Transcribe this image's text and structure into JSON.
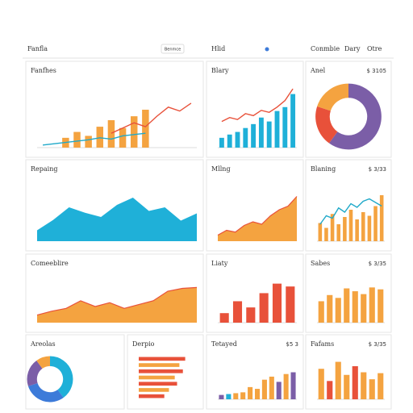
{
  "header": {
    "title": "Fanfla",
    "items": [
      "Benmce",
      "Hlid",
      "Conmbie",
      "Dary",
      "Otre"
    ]
  },
  "chart_data": [
    {
      "type": "combo",
      "title": "Fanfhes",
      "ylim": [
        0,
        100
      ],
      "series": [
        {
          "kind": "bar",
          "color": "#f4a340",
          "values": [
            null,
            null,
            15,
            24,
            18,
            32,
            42,
            30,
            48,
            58,
            null,
            null,
            null,
            null
          ]
        },
        {
          "kind": "line",
          "color": "#1fa9c9",
          "values": [
            4,
            6,
            8,
            10,
            12,
            15,
            13,
            18,
            20,
            22,
            null,
            null,
            null,
            null
          ]
        },
        {
          "kind": "line",
          "color": "#e8513a",
          "values": [
            null,
            null,
            null,
            null,
            null,
            null,
            22,
            30,
            38,
            32,
            48,
            62,
            56,
            68
          ]
        }
      ]
    },
    {
      "type": "combo",
      "title": "Blary",
      "ylim": [
        0,
        100
      ],
      "series": [
        {
          "kind": "bar",
          "color": "#1fb0d8",
          "values": [
            15,
            20,
            24,
            30,
            36,
            46,
            40,
            56,
            62,
            82
          ]
        },
        {
          "kind": "line",
          "color": "#e8513a",
          "values": [
            40,
            46,
            43,
            52,
            49,
            57,
            54,
            62,
            72,
            90
          ]
        }
      ]
    },
    {
      "type": "pie",
      "title": "Anel",
      "subtitle": "$ 3105",
      "values": [
        60,
        20,
        20
      ],
      "colors": [
        "#7b5ea7",
        "#e8513a",
        "#f4a340"
      ]
    },
    {
      "type": "area",
      "title": "Repaing",
      "ylim": [
        0,
        100
      ],
      "color": "#1fb0d8",
      "values": [
        18,
        35,
        56,
        47,
        40,
        60,
        72,
        50,
        56,
        34,
        46
      ]
    },
    {
      "type": "area",
      "title": "Mllng",
      "ylim": [
        0,
        100
      ],
      "color": "#f4a340",
      "line_color": "#e8513a",
      "values": [
        10,
        18,
        15,
        26,
        32,
        28,
        42,
        52,
        58,
        74
      ]
    },
    {
      "type": "combo",
      "title": "Blaning",
      "subtitle": "$ 3/33",
      "ylim": [
        0,
        100
      ],
      "series": [
        {
          "kind": "bar",
          "color": "#f4a340",
          "values": [
            30,
            22,
            45,
            28,
            40,
            52,
            36,
            48,
            42,
            58,
            76
          ]
        },
        {
          "kind": "line",
          "color": "#1fa9c9",
          "values": [
            28,
            42,
            38,
            55,
            48,
            62,
            56,
            66,
            70,
            64,
            58
          ]
        }
      ]
    },
    {
      "type": "area",
      "title": "Comeeblire",
      "ylim": [
        0,
        100
      ],
      "color": "#f4a340",
      "line_color": "#e8513a",
      "values": [
        16,
        24,
        30,
        46,
        34,
        42,
        30,
        38,
        46,
        66,
        72,
        74
      ]
    },
    {
      "type": "bar",
      "title": "Liaty",
      "ylim": [
        0,
        100
      ],
      "color": "#e8513a",
      "values": [
        20,
        45,
        32,
        62,
        82,
        76
      ]
    },
    {
      "type": "bar",
      "title": "Sabes",
      "subtitle": "$ 3/35",
      "ylim": [
        0,
        100
      ],
      "color": "#f4a340",
      "values": [
        45,
        58,
        52,
        72,
        66,
        60,
        74,
        70
      ]
    },
    {
      "type": "pie",
      "title": "Areolas",
      "values": [
        40,
        30,
        20,
        10
      ],
      "colors": [
        "#1fb0d8",
        "#3d7bd9",
        "#7b5ea7",
        "#f4a340"
      ]
    },
    {
      "type": "hbar",
      "title": "Derpio",
      "xlim": [
        0,
        100
      ],
      "colors": [
        "#e8513a",
        "#f4a340",
        "#e8513a",
        "#f4a340",
        "#e8513a",
        "#f4a340",
        "#e8513a"
      ],
      "values": [
        80,
        70,
        76,
        62,
        66,
        52,
        44
      ]
    },
    {
      "type": "bar",
      "title": "Tetayed",
      "subtitle": "$5 3",
      "ylim": [
        0,
        100
      ],
      "colors": [
        "#7b5ea7",
        "#1fb0d8",
        "#f4a340",
        "#f4a340",
        "#f4a340",
        "#f4a340",
        "#f4a340",
        "#f4a340",
        "#7b5ea7",
        "#f4a340",
        "#7b5ea7"
      ],
      "values": [
        10,
        12,
        14,
        16,
        28,
        24,
        45,
        52,
        40,
        58,
        62
      ]
    },
    {
      "type": "bar",
      "title": "Fafams",
      "subtitle": "$ 3/35",
      "ylim": [
        0,
        100
      ],
      "colors": [
        "#f4a340",
        "#e8513a",
        "#f4a340",
        "#f4a340",
        "#e8513a",
        "#f4a340",
        "#f4a340",
        "#f4a340"
      ],
      "values": [
        70,
        42,
        86,
        56,
        76,
        62,
        46,
        60
      ]
    }
  ]
}
